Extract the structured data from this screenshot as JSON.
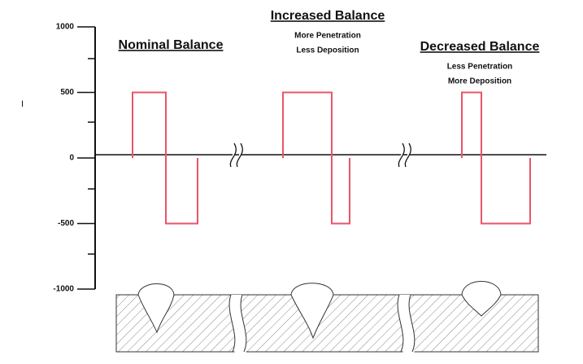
{
  "y_label": "I",
  "yticks": [
    1000,
    500,
    0,
    -500,
    -1000
  ],
  "panels": [
    {
      "title": "Nominal Balance",
      "notes": [],
      "positive": 500,
      "negative": -500
    },
    {
      "title": "Increased Balance",
      "notes": [
        "More Penetration",
        "Less Deposition"
      ],
      "positive": 500,
      "negative": -500
    },
    {
      "title": "Decreased Balance",
      "notes": [
        "Less Penetration",
        "More Deposition"
      ],
      "positive": 500,
      "negative": -500
    }
  ]
}
